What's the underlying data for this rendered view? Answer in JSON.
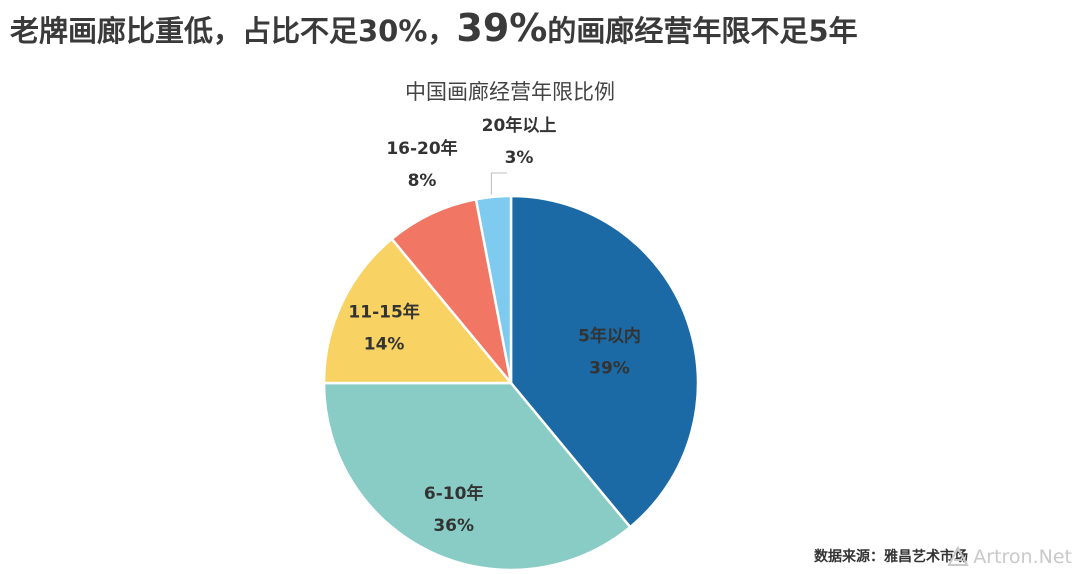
{
  "headline": {
    "part1": "老牌画廊比重低，占比不足30%，",
    "big": "39%",
    "part2": "的画廊经营年限不足5年"
  },
  "source": "数据来源：雅昌艺术市场",
  "watermark": "Artron.Net",
  "chart_data": {
    "type": "pie",
    "title": "中国画廊经营年限比例",
    "slices": [
      {
        "label": "5年以内",
        "value": 39,
        "pct_label": "39%",
        "color": "#1B6AA5"
      },
      {
        "label": "6-10年",
        "value": 36,
        "pct_label": "36%",
        "color": "#88CCC5"
      },
      {
        "label": "11-15年",
        "value": 14,
        "pct_label": "14%",
        "color": "#F8D262"
      },
      {
        "label": "16-20年",
        "value": 8,
        "pct_label": "8%",
        "color": "#F27664"
      },
      {
        "label": "20年以上",
        "value": 3,
        "pct_label": "3%",
        "color": "#7FCBEF"
      }
    ],
    "start": "12 o'clock",
    "direction": "clockwise",
    "label_position": "inside, outside for small slices"
  }
}
